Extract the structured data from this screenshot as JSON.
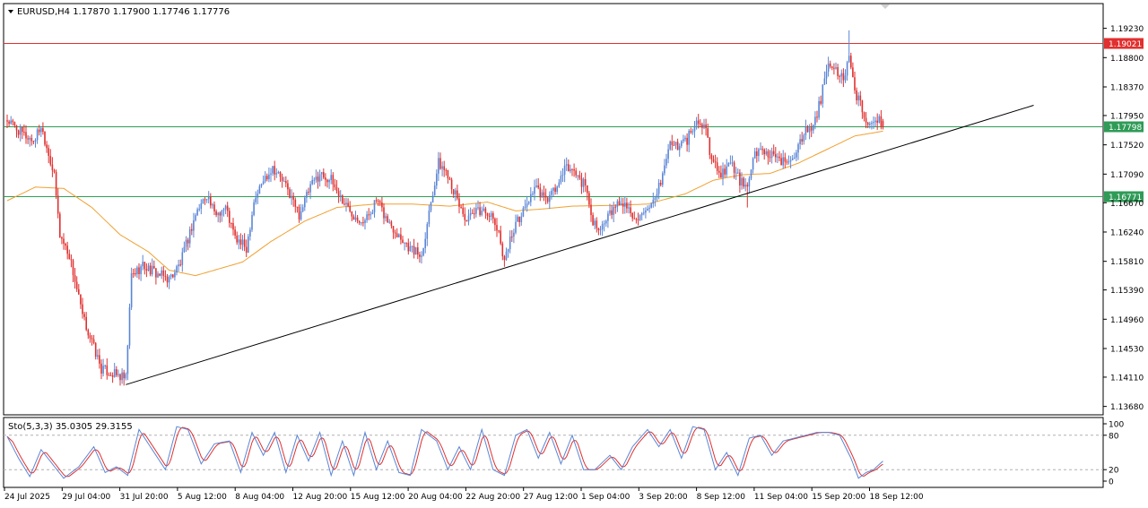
{
  "header": {
    "symbol_line": "EURUSD,H4  1.17870 1.17900 1.17746 1.17776",
    "indicator_label": "Sto(5,3,3) 35.0305 29.3155"
  },
  "price_axis": {
    "ticks": [
      "1.19230",
      "1.18800",
      "1.18370",
      "1.17950",
      "1.17520",
      "1.17090",
      "1.16670",
      "1.16240",
      "1.15810",
      "1.15390",
      "1.14960",
      "1.14530",
      "1.14110",
      "1.13680"
    ]
  },
  "hlines": [
    {
      "label": "1.19021",
      "value": 1.19021,
      "color": "#e0302f"
    },
    {
      "label": "1.17798",
      "value": 1.17798,
      "color": "#2f9b57"
    },
    {
      "label": "1.16771",
      "value": 1.16771,
      "color": "#2f9b57"
    }
  ],
  "stoch_axis": {
    "ticks": [
      "100",
      "80",
      "20",
      "0"
    ]
  },
  "time_axis": {
    "labels": [
      "24 Jul 2025",
      "29 Jul 04:00",
      "31 Jul 20:00",
      "5 Aug 12:00",
      "8 Aug 04:00",
      "12 Aug 20:00",
      "15 Aug 12:00",
      "20 Aug 04:00",
      "22 Aug 20:00",
      "27 Aug 12:00",
      "1 Sep 04:00",
      "3 Sep 20:00",
      "8 Sep 12:00",
      "11 Sep 04:00",
      "15 Sep 20:00",
      "18 Sep 12:00"
    ]
  },
  "colors": {
    "bull": "#5b86d6",
    "bear": "#e0302f",
    "ma": "#f0a030",
    "stoch_main": "#5b86d6",
    "stoch_signal": "#e0302f",
    "trendline": "#000000"
  },
  "chart_data": {
    "type": "candlestick",
    "symbol": "EURUSD",
    "timeframe": "H4",
    "ohlc_last": {
      "open": 1.1787,
      "high": 1.179,
      "low": 1.17746,
      "close": 1.17776
    },
    "price_range": [
      1.1357,
      1.1958
    ],
    "anchors": [
      {
        "x": 0,
        "p": 1.1788
      },
      {
        "x": 8,
        "p": 1.1768
      },
      {
        "x": 14,
        "p": 1.1758
      },
      {
        "x": 18,
        "p": 1.178
      },
      {
        "x": 22,
        "p": 1.174
      },
      {
        "x": 25,
        "p": 1.1705
      },
      {
        "x": 28,
        "p": 1.162
      },
      {
        "x": 33,
        "p": 1.159
      },
      {
        "x": 37,
        "p": 1.154
      },
      {
        "x": 40,
        "p": 1.15
      },
      {
        "x": 44,
        "p": 1.147
      },
      {
        "x": 50,
        "p": 1.1423
      },
      {
        "x": 57,
        "p": 1.1415
      },
      {
        "x": 63,
        "p": 1.1408
      },
      {
        "x": 66,
        "p": 1.156
      },
      {
        "x": 72,
        "p": 1.1575
      },
      {
        "x": 80,
        "p": 1.1562
      },
      {
        "x": 86,
        "p": 1.1555
      },
      {
        "x": 92,
        "p": 1.1578
      },
      {
        "x": 100,
        "p": 1.165
      },
      {
        "x": 106,
        "p": 1.168
      },
      {
        "x": 110,
        "p": 1.165
      },
      {
        "x": 116,
        "p": 1.166
      },
      {
        "x": 121,
        "p": 1.1615
      },
      {
        "x": 127,
        "p": 1.16
      },
      {
        "x": 131,
        "p": 1.167
      },
      {
        "x": 136,
        "p": 1.17
      },
      {
        "x": 141,
        "p": 1.172
      },
      {
        "x": 146,
        "p": 1.17
      },
      {
        "x": 150,
        "p": 1.168
      },
      {
        "x": 155,
        "p": 1.165
      },
      {
        "x": 161,
        "p": 1.169
      },
      {
        "x": 166,
        "p": 1.171
      },
      {
        "x": 172,
        "p": 1.17
      },
      {
        "x": 178,
        "p": 1.167
      },
      {
        "x": 184,
        "p": 1.165
      },
      {
        "x": 190,
        "p": 1.164
      },
      {
        "x": 196,
        "p": 1.167
      },
      {
        "x": 202,
        "p": 1.164
      },
      {
        "x": 208,
        "p": 1.162
      },
      {
        "x": 214,
        "p": 1.16
      },
      {
        "x": 220,
        "p": 1.159
      },
      {
        "x": 225,
        "p": 1.167
      },
      {
        "x": 229,
        "p": 1.1725
      },
      {
        "x": 234,
        "p": 1.171
      },
      {
        "x": 239,
        "p": 1.167
      },
      {
        "x": 244,
        "p": 1.164
      },
      {
        "x": 250,
        "p": 1.1655
      },
      {
        "x": 255,
        "p": 1.1655
      },
      {
        "x": 260,
        "p": 1.163
      },
      {
        "x": 264,
        "p": 1.1585
      },
      {
        "x": 269,
        "p": 1.163
      },
      {
        "x": 275,
        "p": 1.166
      },
      {
        "x": 280,
        "p": 1.169
      },
      {
        "x": 286,
        "p": 1.167
      },
      {
        "x": 292,
        "p": 1.169
      },
      {
        "x": 297,
        "p": 1.172
      },
      {
        "x": 302,
        "p": 1.171
      },
      {
        "x": 307,
        "p": 1.169
      },
      {
        "x": 311,
        "p": 1.164
      },
      {
        "x": 316,
        "p": 1.163
      },
      {
        "x": 320,
        "p": 1.165
      },
      {
        "x": 326,
        "p": 1.167
      },
      {
        "x": 332,
        "p": 1.165
      },
      {
        "x": 338,
        "p": 1.1645
      },
      {
        "x": 344,
        "p": 1.1668
      },
      {
        "x": 349,
        "p": 1.172
      },
      {
        "x": 352,
        "p": 1.1755
      },
      {
        "x": 356,
        "p": 1.175
      },
      {
        "x": 361,
        "p": 1.176
      },
      {
        "x": 366,
        "p": 1.1785
      },
      {
        "x": 371,
        "p": 1.1775
      },
      {
        "x": 374,
        "p": 1.173
      },
      {
        "x": 379,
        "p": 1.171
      },
      {
        "x": 384,
        "p": 1.1725
      },
      {
        "x": 389,
        "p": 1.17
      },
      {
        "x": 393,
        "p": 1.1685
      },
      {
        "x": 397,
        "p": 1.174
      },
      {
        "x": 402,
        "p": 1.1745
      },
      {
        "x": 408,
        "p": 1.173
      },
      {
        "x": 413,
        "p": 1.1725
      },
      {
        "x": 418,
        "p": 1.174
      },
      {
        "x": 423,
        "p": 1.177
      },
      {
        "x": 428,
        "p": 1.1775
      },
      {
        "x": 432,
        "p": 1.182
      },
      {
        "x": 436,
        "p": 1.187
      },
      {
        "x": 440,
        "p": 1.186
      },
      {
        "x": 444,
        "p": 1.185
      },
      {
        "x": 447,
        "p": 1.188
      },
      {
        "x": 450,
        "p": 1.1825
      },
      {
        "x": 453,
        "p": 1.182
      },
      {
        "x": 456,
        "p": 1.178
      },
      {
        "x": 459,
        "p": 1.179
      },
      {
        "x": 463,
        "p": 1.1786
      },
      {
        "x": 465,
        "p": 1.1778
      }
    ],
    "moving_average": [
      {
        "x": 0,
        "p": 1.167
      },
      {
        "x": 15,
        "p": 1.169
      },
      {
        "x": 30,
        "p": 1.1688
      },
      {
        "x": 45,
        "p": 1.166
      },
      {
        "x": 60,
        "p": 1.162
      },
      {
        "x": 75,
        "p": 1.1595
      },
      {
        "x": 86,
        "p": 1.1568
      },
      {
        "x": 100,
        "p": 1.156
      },
      {
        "x": 110,
        "p": 1.1568
      },
      {
        "x": 125,
        "p": 1.158
      },
      {
        "x": 140,
        "p": 1.161
      },
      {
        "x": 158,
        "p": 1.164
      },
      {
        "x": 175,
        "p": 1.166
      },
      {
        "x": 195,
        "p": 1.1665
      },
      {
        "x": 215,
        "p": 1.1665
      },
      {
        "x": 235,
        "p": 1.1662
      },
      {
        "x": 255,
        "p": 1.1668
      },
      {
        "x": 270,
        "p": 1.1655
      },
      {
        "x": 285,
        "p": 1.1658
      },
      {
        "x": 300,
        "p": 1.1662
      },
      {
        "x": 320,
        "p": 1.1663
      },
      {
        "x": 340,
        "p": 1.1665
      },
      {
        "x": 360,
        "p": 1.168
      },
      {
        "x": 375,
        "p": 1.17
      },
      {
        "x": 390,
        "p": 1.1708
      },
      {
        "x": 405,
        "p": 1.171
      },
      {
        "x": 420,
        "p": 1.1725
      },
      {
        "x": 435,
        "p": 1.1745
      },
      {
        "x": 450,
        "p": 1.1765
      },
      {
        "x": 465,
        "p": 1.1772
      }
    ],
    "trendline": [
      {
        "x": 63,
        "p": 1.14
      },
      {
        "x": 545,
        "p": 1.181
      }
    ],
    "stochastic": {
      "k_period": 5,
      "d_period": 3,
      "slowing": 3,
      "main_last": 35.0305,
      "signal_last": 29.3155,
      "levels": [
        20,
        80
      ],
      "main_anchors": [
        {
          "x": 0,
          "v": 78
        },
        {
          "x": 6,
          "v": 40
        },
        {
          "x": 12,
          "v": 8
        },
        {
          "x": 18,
          "v": 55
        },
        {
          "x": 24,
          "v": 30
        },
        {
          "x": 30,
          "v": 5
        },
        {
          "x": 38,
          "v": 25
        },
        {
          "x": 46,
          "v": 60
        },
        {
          "x": 52,
          "v": 15
        },
        {
          "x": 58,
          "v": 25
        },
        {
          "x": 64,
          "v": 10
        },
        {
          "x": 70,
          "v": 90
        },
        {
          "x": 76,
          "v": 60
        },
        {
          "x": 84,
          "v": 20
        },
        {
          "x": 90,
          "v": 95
        },
        {
          "x": 96,
          "v": 90
        },
        {
          "x": 103,
          "v": 30
        },
        {
          "x": 110,
          "v": 65
        },
        {
          "x": 118,
          "v": 70
        },
        {
          "x": 124,
          "v": 15
        },
        {
          "x": 130,
          "v": 85
        },
        {
          "x": 136,
          "v": 45
        },
        {
          "x": 142,
          "v": 85
        },
        {
          "x": 148,
          "v": 15
        },
        {
          "x": 154,
          "v": 80
        },
        {
          "x": 160,
          "v": 35
        },
        {
          "x": 166,
          "v": 85
        },
        {
          "x": 172,
          "v": 10
        },
        {
          "x": 178,
          "v": 70
        },
        {
          "x": 184,
          "v": 10
        },
        {
          "x": 190,
          "v": 85
        },
        {
          "x": 196,
          "v": 20
        },
        {
          "x": 202,
          "v": 70
        },
        {
          "x": 208,
          "v": 15
        },
        {
          "x": 214,
          "v": 10
        },
        {
          "x": 220,
          "v": 90
        },
        {
          "x": 228,
          "v": 70
        },
        {
          "x": 234,
          "v": 20
        },
        {
          "x": 240,
          "v": 60
        },
        {
          "x": 246,
          "v": 20
        },
        {
          "x": 252,
          "v": 90
        },
        {
          "x": 258,
          "v": 20
        },
        {
          "x": 264,
          "v": 10
        },
        {
          "x": 270,
          "v": 80
        },
        {
          "x": 276,
          "v": 90
        },
        {
          "x": 282,
          "v": 40
        },
        {
          "x": 288,
          "v": 85
        },
        {
          "x": 294,
          "v": 30
        },
        {
          "x": 300,
          "v": 80
        },
        {
          "x": 306,
          "v": 20
        },
        {
          "x": 312,
          "v": 20
        },
        {
          "x": 320,
          "v": 45
        },
        {
          "x": 326,
          "v": 20
        },
        {
          "x": 332,
          "v": 60
        },
        {
          "x": 340,
          "v": 90
        },
        {
          "x": 346,
          "v": 60
        },
        {
          "x": 352,
          "v": 90
        },
        {
          "x": 358,
          "v": 40
        },
        {
          "x": 364,
          "v": 95
        },
        {
          "x": 370,
          "v": 90
        },
        {
          "x": 376,
          "v": 20
        },
        {
          "x": 382,
          "v": 50
        },
        {
          "x": 388,
          "v": 10
        },
        {
          "x": 394,
          "v": 75
        },
        {
          "x": 400,
          "v": 80
        },
        {
          "x": 406,
          "v": 45
        },
        {
          "x": 412,
          "v": 70
        },
        {
          "x": 418,
          "v": 75
        },
        {
          "x": 424,
          "v": 80
        },
        {
          "x": 430,
          "v": 85
        },
        {
          "x": 436,
          "v": 85
        },
        {
          "x": 442,
          "v": 80
        },
        {
          "x": 448,
          "v": 40
        },
        {
          "x": 452,
          "v": 5
        },
        {
          "x": 456,
          "v": 15
        },
        {
          "x": 460,
          "v": 20
        },
        {
          "x": 465,
          "v": 35
        }
      ]
    }
  }
}
